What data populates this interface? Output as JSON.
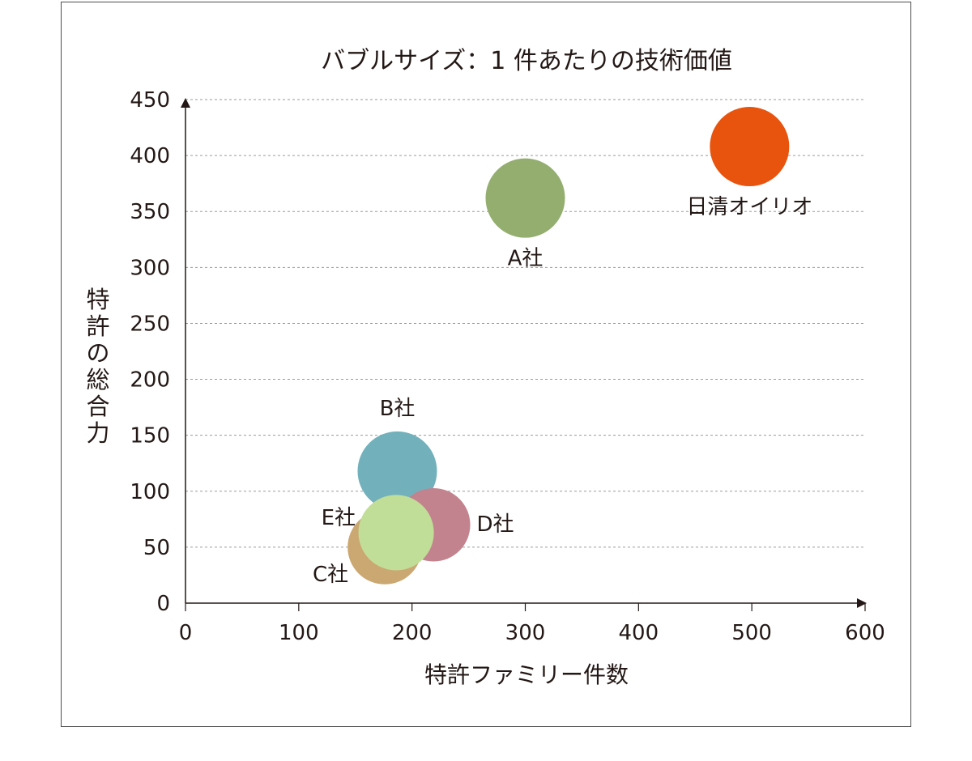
{
  "chart_data": {
    "type": "scatter",
    "title": "バブルサイズ：1 件あたりの技術価値",
    "xlabel": "特許ファミリー件数",
    "ylabel": "特許の総合力",
    "xlim": [
      0,
      600
    ],
    "ylim": [
      0,
      450
    ],
    "x_ticks": [
      0,
      100,
      200,
      300,
      400,
      500,
      600
    ],
    "y_ticks": [
      0,
      50,
      100,
      150,
      200,
      250,
      300,
      350,
      400,
      450
    ],
    "grid": true,
    "points": [
      {
        "label": "日清オイリオ",
        "x": 498,
        "y": 408,
        "size": 0.82,
        "color": "#E8530E",
        "label_side": "bottom"
      },
      {
        "label": "A社",
        "x": 300,
        "y": 362,
        "size": 0.82,
        "color": "#93AE6F",
        "label_side": "bottom"
      },
      {
        "label": "B社",
        "x": 187,
        "y": 118,
        "size": 0.82,
        "color": "#72B1BB",
        "label_side": "top"
      },
      {
        "label": "C社",
        "x": 176,
        "y": 50,
        "size": 0.72,
        "color": "#CBA771",
        "label_side": "left"
      },
      {
        "label": "D社",
        "x": 219,
        "y": 70,
        "size": 0.7,
        "color": "#C2838E",
        "label_side": "right"
      },
      {
        "label": "E社",
        "x": 186,
        "y": 63,
        "size": 0.74,
        "color": "#C1DE99",
        "label_side": "left"
      }
    ]
  }
}
